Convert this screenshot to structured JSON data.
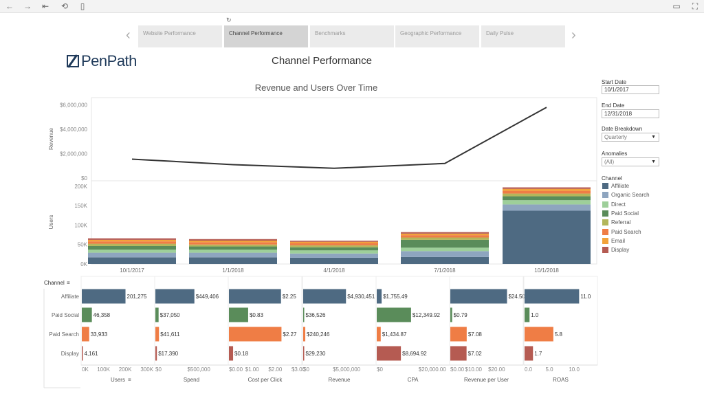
{
  "toolbar": {
    "icons": [
      "back-icon",
      "forward-icon",
      "first-page-icon",
      "revert-icon",
      "pause-icon",
      "comment-icon",
      "fullscreen-icon"
    ]
  },
  "tabs": [
    {
      "label": "Website Performance",
      "active": false
    },
    {
      "label": "Channel Performance",
      "active": true
    },
    {
      "label": "Benchmarks",
      "active": false
    },
    {
      "label": "Geographic Performance",
      "active": false
    },
    {
      "label": "Daily Pulse",
      "active": false
    }
  ],
  "logo": {
    "text": "PenPath"
  },
  "page_title": "Channel Performance",
  "chart_title": "Revenue and Users Over Time",
  "filters": {
    "start_label": "Start Date",
    "start_value": "10/1/2017",
    "end_label": "End Date",
    "end_value": "12/31/2018",
    "breakdown_label": "Date Breakdown",
    "breakdown_value": "Quarterly",
    "anomalies_label": "Anomalies",
    "anomalies_value": "(All)",
    "channel_label": "Channel"
  },
  "legend": [
    {
      "name": "Affiliate",
      "color": "#4e6a82"
    },
    {
      "name": "Organic Search",
      "color": "#8ea5bf"
    },
    {
      "name": "Direct",
      "color": "#9ecf9a"
    },
    {
      "name": "Paid Social",
      "color": "#5a8c5a"
    },
    {
      "name": "Referral",
      "color": "#b3b65b"
    },
    {
      "name": "Paid Search",
      "color": "#ef7d45"
    },
    {
      "name": "Email",
      "color": "#f2a33a"
    },
    {
      "name": "Display",
      "color": "#b55b52"
    }
  ],
  "chart_data": [
    {
      "type": "line",
      "ylabel": "Revenue",
      "x": [
        "10/1/2017",
        "1/1/2018",
        "4/1/2018",
        "7/1/2018",
        "10/1/2018"
      ],
      "values": [
        1550000,
        1100000,
        800000,
        1200000,
        5800000
      ],
      "yticks": [
        "$0",
        "$2,000,000",
        "$4,000,000",
        "$6,000,000"
      ],
      "ylim": [
        0,
        6200000
      ],
      "line_color": "#333333"
    },
    {
      "type": "bar",
      "ylabel": "Users",
      "categories": [
        "10/1/2017",
        "1/1/2018",
        "4/1/2018",
        "7/1/2018",
        "10/1/2018"
      ],
      "yticks": [
        "0K",
        "50K",
        "100K",
        "150K",
        "200K"
      ],
      "ylim": [
        0,
        205000
      ],
      "series": [
        {
          "name": "Affiliate",
          "values": [
            17000,
            17000,
            16000,
            18000,
            137000
          ]
        },
        {
          "name": "Organic Search",
          "values": [
            12000,
            12000,
            11000,
            15000,
            16000
          ]
        },
        {
          "name": "Direct",
          "values": [
            8000,
            8000,
            8000,
            9000,
            11000
          ]
        },
        {
          "name": "Paid Social",
          "values": [
            9000,
            8000,
            8000,
            20000,
            10000
          ]
        },
        {
          "name": "Referral",
          "values": [
            6000,
            5000,
            5000,
            6000,
            7000
          ]
        },
        {
          "name": "Paid Search",
          "values": [
            6000,
            6000,
            6000,
            6000,
            7000
          ]
        },
        {
          "name": "Email",
          "values": [
            4000,
            4000,
            3000,
            4000,
            5000
          ]
        },
        {
          "name": "Display",
          "values": [
            4000,
            4000,
            3000,
            4000,
            4000
          ]
        }
      ]
    },
    {
      "type": "bar",
      "row_header": "Channel",
      "rows": [
        "Affiliate",
        "Paid Social",
        "Paid Search",
        "Display"
      ],
      "row_colors": [
        "#4e6a82",
        "#5a8c5a",
        "#ef7d45",
        "#b55b52"
      ],
      "columns": [
        {
          "name": "Users",
          "max": 320000,
          "ticks": [
            "0K",
            "100K",
            "200K",
            "300K"
          ],
          "values": [
            201275,
            46358,
            33933,
            4161
          ],
          "labels": [
            "201,275",
            "46,358",
            "33,933",
            "4,161"
          ]
        },
        {
          "name": "Spend",
          "max": 800000,
          "ticks": [
            "$0",
            "$500,000"
          ],
          "values": [
            449406,
            37050,
            41611,
            17390
          ],
          "labels": [
            "$449,406",
            "$37,050",
            "$41,611",
            "$17,390"
          ]
        },
        {
          "name": "Cost per Click",
          "max": 3.0,
          "ticks": [
            "$0.00",
            "$1.00",
            "$2.00",
            "$3.00"
          ],
          "values": [
            2.25,
            0.83,
            2.27,
            0.18
          ],
          "labels": [
            "$2.25",
            "$0.83",
            "$2.27",
            "$0.18"
          ]
        },
        {
          "name": "Revenue",
          "max": 8000000,
          "ticks": [
            "$0",
            "$5,000,000"
          ],
          "values": [
            4930451,
            36526,
            240246,
            29230
          ],
          "labels": [
            "$4,930,451",
            "$36,526",
            "$240,246",
            "$29,230"
          ]
        },
        {
          "name": "CPA",
          "max": 25000,
          "ticks": [
            "$0",
            "$20,000.00"
          ],
          "values": [
            1755.49,
            12349.92,
            1434.87,
            8694.92
          ],
          "labels": [
            "$1,755.49",
            "$12,349.92",
            "$1,434.87",
            "$8,694.92"
          ]
        },
        {
          "name": "Revenue per User",
          "max": 30,
          "ticks": [
            "$0.00",
            "$10.00",
            "$20.00"
          ],
          "values": [
            24.5,
            0.79,
            7.08,
            7.02
          ],
          "labels": [
            "$24.50",
            "$0.79",
            "$7.08",
            "$7.02"
          ]
        },
        {
          "name": "ROAS",
          "max": 14,
          "ticks": [
            "0.0",
            "5.0",
            "10.0"
          ],
          "values": [
            11.0,
            1.0,
            5.8,
            1.7
          ],
          "labels": [
            "11.0",
            "1.0",
            "5.8",
            "1.7"
          ]
        }
      ]
    }
  ]
}
